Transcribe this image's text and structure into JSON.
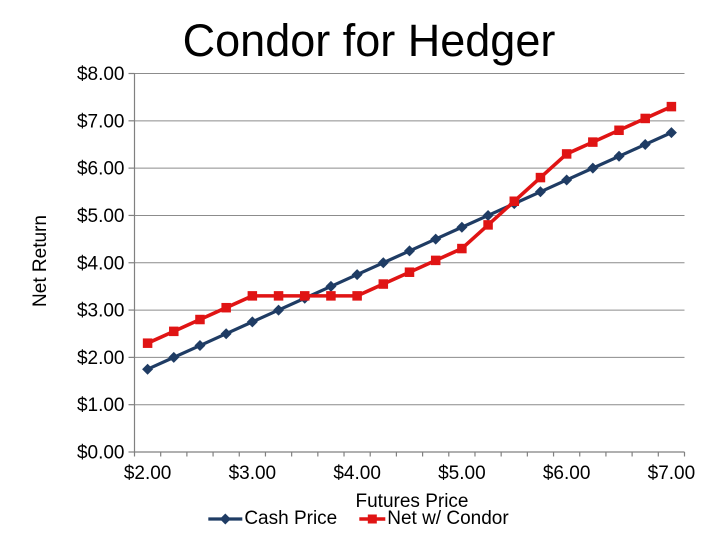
{
  "chart_data": {
    "type": "line",
    "title": "Condor for Hedger",
    "xlabel": "Futures Price",
    "ylabel": "Net Return",
    "x": [
      2.0,
      2.25,
      2.5,
      2.75,
      3.0,
      3.25,
      3.5,
      3.75,
      4.0,
      4.25,
      4.5,
      4.75,
      5.0,
      5.25,
      5.5,
      5.75,
      6.0,
      6.25,
      6.5,
      6.75,
      7.0
    ],
    "series": [
      {
        "name": "Cash Price",
        "marker": "diamond",
        "color": "#1f3c64",
        "values": [
          1.75,
          2.0,
          2.25,
          2.5,
          2.75,
          3.0,
          3.25,
          3.5,
          3.75,
          4.0,
          4.25,
          4.5,
          4.75,
          5.0,
          5.25,
          5.5,
          5.75,
          6.0,
          6.25,
          6.5,
          6.75
        ]
      },
      {
        "name": "Net w/ Condor",
        "marker": "square",
        "color": "#e01414",
        "values": [
          2.3,
          2.55,
          2.8,
          3.05,
          3.3,
          3.3,
          3.3,
          3.3,
          3.3,
          3.55,
          3.8,
          4.05,
          4.3,
          4.8,
          5.3,
          5.8,
          6.3,
          6.55,
          6.8,
          7.05,
          7.3
        ]
      }
    ],
    "ylim": [
      0,
      8
    ],
    "y_tick_values": [
      8,
      7,
      6,
      5,
      4,
      3,
      2,
      1,
      0
    ],
    "y_tick_labels": [
      "$8.00",
      "$7.00",
      "$6.00",
      "$5.00",
      "$4.00",
      "$3.00",
      "$2.00",
      "$1.00",
      "$0.00"
    ],
    "x_tick_values": [
      2,
      3,
      4,
      5,
      6,
      7
    ],
    "x_tick_labels": [
      "$2.00",
      "$3.00",
      "$4.00",
      "$5.00",
      "$6.00",
      "$7.00"
    ],
    "grid": "horizontal",
    "legend_position": "bottom-center",
    "gridline_color": "#8c8c8c",
    "axis_color": "#808080",
    "text_color": "#000000",
    "background_color": "#ffffff"
  }
}
